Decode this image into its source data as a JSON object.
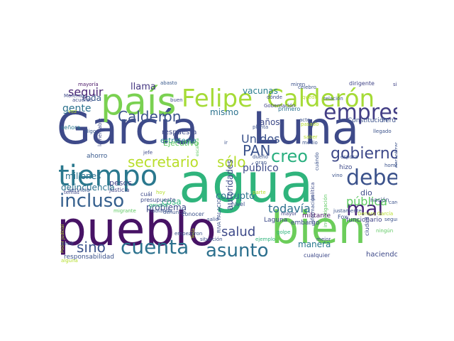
{
  "words": [
    {
      "text": "García",
      "color": "#3e4a89",
      "rotation": 0
    },
    {
      "text": "Luna",
      "color": "#3e4a89",
      "rotation": 0
    },
    {
      "text": "agua",
      "color": "#2fb47c",
      "rotation": 0
    },
    {
      "text": "pueblo",
      "color": "#471365",
      "rotation": 0
    },
    {
      "text": "bien",
      "color": "#6ccd5a",
      "rotation": 0
    },
    {
      "text": "país",
      "color": "#7ad151",
      "rotation": 0
    },
    {
      "text": "Felipe",
      "color": "#a5db36",
      "rotation": 0
    },
    {
      "text": "Calderón",
      "color": "#a5db36",
      "rotation": 0
    },
    {
      "text": "tiempo",
      "color": "#2a788e",
      "rotation": 0
    },
    {
      "text": "empresa",
      "color": "#433e85",
      "rotation": 0
    },
    {
      "text": "debe",
      "color": "#3b528b",
      "rotation": 0
    },
    {
      "text": "cuenta",
      "color": "#2c728e",
      "rotation": 0
    },
    {
      "text": "asunto",
      "color": "#2d708e",
      "rotation": 0
    },
    {
      "text": "mal",
      "color": "#482878",
      "rotation": 0
    },
    {
      "text": "incluso",
      "color": "#355f8d",
      "rotation": 0
    },
    {
      "text": "gobierno",
      "color": "#3e4989",
      "rotation": 0
    },
    {
      "text": "secretario",
      "color": "#b8de29",
      "rotation": 0
    },
    {
      "text": "sólo",
      "color": "#b5de2b",
      "rotation": 0
    },
    {
      "text": "creo",
      "color": "#29af7f",
      "rotation": 0
    },
    {
      "text": "Calderón",
      "color": "#3b528b",
      "rotation": 0
    },
    {
      "text": "PAN",
      "color": "#3b528b",
      "rotation": 0
    },
    {
      "text": "salud",
      "color": "#3e4a89",
      "rotation": 0
    },
    {
      "text": "sino",
      "color": "#3b528b",
      "rotation": 0
    },
    {
      "text": "todavía",
      "color": "#2d708e",
      "rotation": 0
    },
    {
      "text": "pública",
      "color": "#5ec962",
      "rotation": 0
    },
    {
      "text": "Unidos",
      "color": "#3b528b",
      "rotation": 0
    },
    {
      "text": "público",
      "color": "#3e4a89",
      "rotation": 0
    },
    {
      "text": "seguir",
      "color": "#482475",
      "rotation": 0
    },
    {
      "text": "gente",
      "color": "#2c728e",
      "rotation": 0
    },
    {
      "text": "llama",
      "color": "#453781",
      "rotation": 0
    },
    {
      "text": "toda",
      "color": "#38598c",
      "rotation": 0
    },
    {
      "text": "vacunas",
      "color": "#287d8e",
      "rotation": 0
    },
    {
      "text": "mismo",
      "color": "#2c728e",
      "rotation": 0
    },
    {
      "text": "años",
      "color": "#3e4a89",
      "rotation": 0
    },
    {
      "text": "millones",
      "color": "#2c728e",
      "rotation": 0
    },
    {
      "text": "pesos",
      "color": "#414487",
      "rotation": 0
    },
    {
      "text": "delincuencia",
      "color": "#2c728e",
      "rotation": 0
    },
    {
      "text": "corrupto",
      "color": "#2c728e",
      "rotation": 0
    },
    {
      "text": "problema",
      "color": "#3e4a89",
      "rotation": 0
    },
    {
      "text": "autoridades",
      "color": "#3e4a89",
      "rotation": 90
    },
    {
      "text": "manera",
      "color": "#2a788e",
      "rotation": 0
    },
    {
      "text": "seguridad",
      "color": "#3b528b",
      "rotation": 90
    },
    {
      "text": "dio",
      "color": "#3e4a89",
      "rotation": 0
    },
    {
      "text": "cosa",
      "color": "#2fb47c",
      "rotation": 0
    },
    {
      "text": "estrategia",
      "color": "#25848e",
      "rotation": 0
    },
    {
      "text": "respuesta",
      "color": "#3e4a89",
      "rotation": 0
    },
    {
      "text": "Ejecutivo",
      "color": "#5ec962",
      "rotation": 0
    },
    {
      "text": "Constitución",
      "color": "#3b528b",
      "rotation": 0
    },
    {
      "text": "Perú",
      "color": "#3b528b",
      "rotation": 0
    },
    {
      "text": "hizo",
      "color": "#3e4a89",
      "rotation": 0
    },
    {
      "text": "funcionario",
      "color": "#414487",
      "rotation": 0
    },
    {
      "text": "embargo",
      "color": "#3e4a89",
      "rotation": 0
    },
    {
      "text": "haciendo",
      "color": "#3e4a89",
      "rotation": 0
    },
    {
      "text": "responsabilidad",
      "color": "#3b528b",
      "rotation": 0
    },
    {
      "text": "señora",
      "color": "#2a788e",
      "rotation": 0
    },
    {
      "text": "ahorro",
      "color": "#38598c",
      "rotation": 0
    },
    {
      "text": "servicio",
      "color": "#3b528b",
      "rotation": 0
    },
    {
      "text": "justicia",
      "color": "#414487",
      "rotation": 0
    },
    {
      "text": "cuál",
      "color": "#3e4a89",
      "rotation": 0
    },
    {
      "text": "presupuesto",
      "color": "#3e4a89",
      "rotation": 0
    },
    {
      "text": "conocer",
      "color": "#3b528b",
      "rotation": 0
    },
    {
      "text": "nivel",
      "color": "#3b528b",
      "rotation": 0
    },
    {
      "text": "Laguna",
      "color": "#3e4a89",
      "rotation": 0
    },
    {
      "text": "militante",
      "color": "#471365",
      "rotation": 0
    },
    {
      "text": "cualquier",
      "color": "#3e4a89",
      "rotation": 0
    },
    {
      "text": "ciudad",
      "color": "#3e4a89",
      "rotation": 90
    },
    {
      "text": "nación",
      "color": "#3b528b",
      "rotation": 0
    },
    {
      "text": "mayoría",
      "color": "#471365",
      "rotation": 0
    },
    {
      "text": "abasto",
      "color": "#38598c",
      "rotation": 0
    },
    {
      "text": "miren",
      "color": "#3b528b",
      "rotation": 0
    },
    {
      "text": "dirigente",
      "color": "#414487",
      "rotation": 0
    },
    {
      "text": "siempre",
      "color": "#414487",
      "rotation": 0
    },
    {
      "text": "dónde",
      "color": "#3e4a89",
      "rotation": 0
    },
    {
      "text": "Gobernación",
      "color": "#414487",
      "rotation": 0
    },
    {
      "text": "primero",
      "color": "#2c728e",
      "rotation": 0
    },
    {
      "text": "buen",
      "color": "#3e4a89",
      "rotation": 0
    },
    {
      "text": "denuncia",
      "color": "#3b528b",
      "rotation": 0
    },
    {
      "text": "acuerdo",
      "color": "#3e4a89",
      "rotation": 0
    },
    {
      "text": "Morena",
      "color": "#3e4a89",
      "rotation": 0
    },
    {
      "text": "jefe",
      "color": "#3e4a89",
      "rotation": 0
    },
    {
      "text": "digo",
      "color": "#38598c",
      "rotation": 0
    },
    {
      "text": "lamentable",
      "color": "#3e4a89",
      "rotation": 90
    },
    {
      "text": "hoy",
      "color": "#b5de2b",
      "rotation": 0
    },
    {
      "text": "temas",
      "color": "#3e4a89",
      "rotation": 0
    },
    {
      "text": "general",
      "color": "#2fb47c",
      "rotation": 0
    },
    {
      "text": "migrante",
      "color": "#5ec962",
      "rotation": 0
    },
    {
      "text": "hablando",
      "color": "#3b528b",
      "rotation": 0
    },
    {
      "text": "situación",
      "color": "#3b528b",
      "rotation": 0
    },
    {
      "text": "ejemplo",
      "color": "#2fb47c",
      "rotation": 0
    },
    {
      "text": "empezaron",
      "color": "#3b528b",
      "rotation": 0
    },
    {
      "text": "salió",
      "color": "#3b528b",
      "rotation": 0
    },
    {
      "text": "golpe",
      "color": "#2fb47c",
      "rotation": 0
    },
    {
      "text": "mayor",
      "color": "#414487",
      "rotation": 0
    },
    {
      "text": "justamente",
      "color": "#3b528b",
      "rotation": 0
    },
    {
      "text": "Fox",
      "color": "#3b528b",
      "rotation": 0
    },
    {
      "text": "Genaro García",
      "color": "#b5de2b",
      "rotation": 0
    },
    {
      "text": "cargo",
      "color": "#3b528b",
      "rotation": 0
    },
    {
      "text": "seguro",
      "color": "#3b528b",
      "rotation": 0
    },
    {
      "text": "ningún",
      "color": "#5ec962",
      "rotation": 0
    },
    {
      "text": "mejor",
      "color": "#3e4a89",
      "rotation": 0
    },
    {
      "text": "planta",
      "color": "#3b528b",
      "rotation": 0
    },
    {
      "text": "celebro",
      "color": "#3b528b",
      "rotation": 0
    },
    {
      "text": "queda",
      "color": "#b5de2b",
      "rotation": 0
    },
    {
      "text": "relación",
      "color": "#3b528b",
      "rotation": 0
    },
    {
      "text": "acto",
      "color": "#3b528b",
      "rotation": 0
    },
    {
      "text": "saber",
      "color": "#b5de2b",
      "rotation": 0
    },
    {
      "text": "pasado",
      "color": "#b5de2b",
      "rotation": 0
    },
    {
      "text": "llegado",
      "color": "#3b528b",
      "rotation": 0
    },
    {
      "text": "medio",
      "color": "#3b528b",
      "rotation": 0
    },
    {
      "text": "esposa",
      "color": "#3b528b",
      "rotation": 0
    },
    {
      "text": "cuándo",
      "color": "#3b528b",
      "rotation": 90
    },
    {
      "text": "vino",
      "color": "#3b528b",
      "rotation": 0
    },
    {
      "text": "hombre",
      "color": "#3b528b",
      "rotation": 0
    },
    {
      "text": "dueño",
      "color": "#3b528b",
      "rotation": 0
    },
    {
      "text": "gran",
      "color": "#3b528b",
      "rotation": 0
    },
    {
      "text": "ir",
      "color": "#3b528b",
      "rotation": 0
    },
    {
      "text": "política",
      "color": "#3e4a89",
      "rotation": 90
    },
    {
      "text": "información",
      "color": "#3b528b",
      "rotation": 90
    },
    {
      "text": "investigación",
      "color": "#5ec962",
      "rotation": 90
    },
    {
      "text": "parte",
      "color": "#b5de2b",
      "rotation": 0
    },
    {
      "text": "RIVA PALACIO",
      "color": "#3b528b",
      "rotation": 90
    },
    {
      "text": "escalera",
      "color": "#5ec962",
      "rotation": 90
    },
    {
      "text": "garantizar",
      "color": "#3b528b",
      "rotation": 90
    },
    {
      "text": "Poder Judicial",
      "color": "#b5de2b",
      "rotation": 90
    },
    {
      "text": "pedir",
      "color": "#3b528b",
      "rotation": 0
    },
    {
      "text": "alguna",
      "color": "#b5de2b",
      "rotation": 0
    },
    {
      "text": "Tesla",
      "color": "#b5de2b",
      "rotation": 90
    },
    {
      "text": "vez",
      "color": "#b5de2b",
      "rotation": 0
    }
  ]
}
